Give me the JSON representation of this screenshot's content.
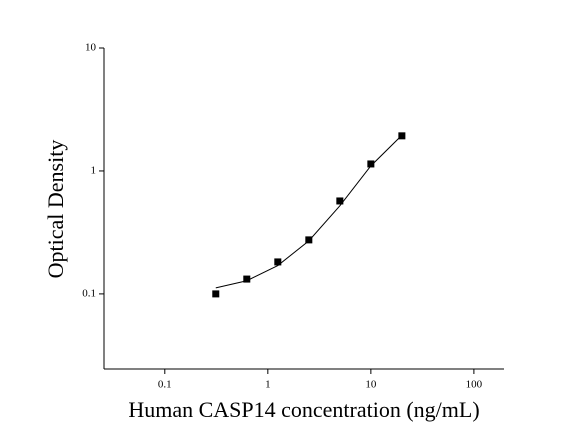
{
  "chart_data": {
    "type": "scatter",
    "x_label": "Human CASP14 concentration (ng/mL)",
    "y_label": "Optical Density",
    "x_log": true,
    "y_log": true,
    "x": [
      0.3125,
      0.625,
      1.25,
      2.5,
      5,
      10,
      20
    ],
    "series": [
      {
        "type": "scatter",
        "color": "#000000",
        "values": [
          0.1,
          0.132,
          0.182,
          0.275,
          0.57,
          1.14,
          1.93
        ]
      },
      {
        "type": "line",
        "color": "#000000",
        "values": [
          0.112,
          0.128,
          0.17,
          0.27,
          0.52,
          1.1,
          1.95
        ]
      }
    ],
    "xlim": [
      0.0257,
      196
    ],
    "ylim": [
      0.0245,
      10
    ],
    "xticks": [
      0.1,
      1,
      10,
      100
    ],
    "yticks": [
      0.1,
      1,
      10
    ]
  }
}
